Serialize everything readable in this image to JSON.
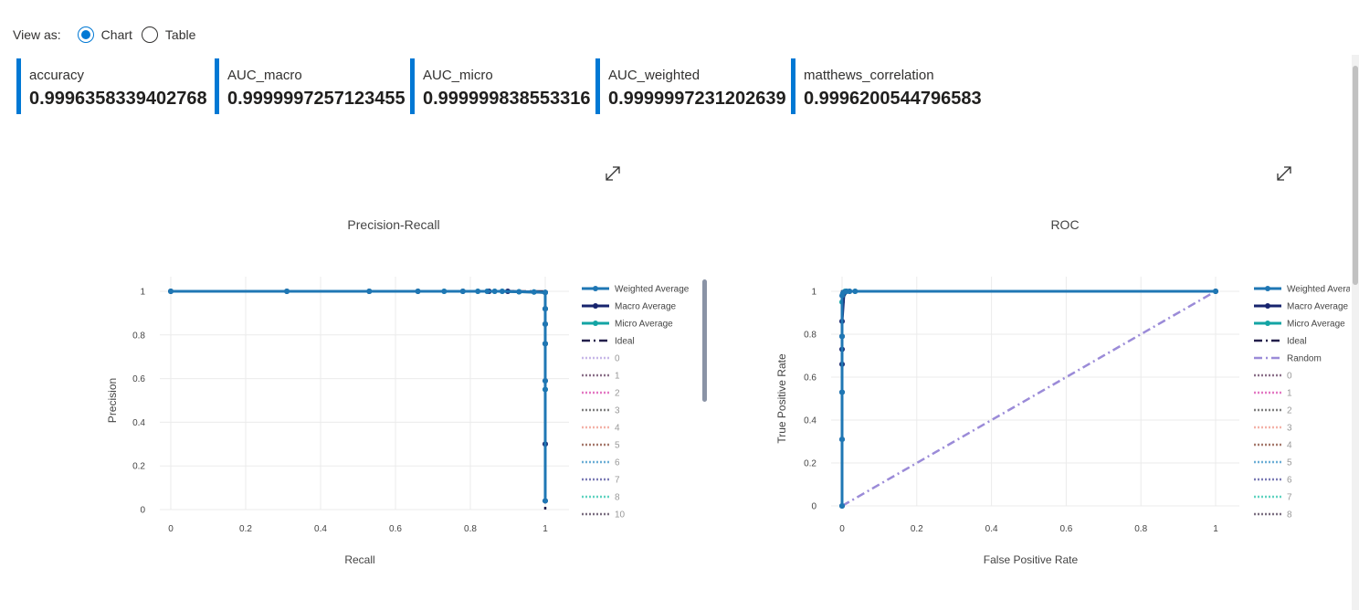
{
  "view_as": {
    "label": "View as:",
    "options": [
      {
        "label": "Chart",
        "selected": true
      },
      {
        "label": "Table",
        "selected": false
      }
    ]
  },
  "metrics": [
    {
      "name": "accuracy",
      "value": "0.9996358339402768"
    },
    {
      "name": "AUC_macro",
      "value": "0.9999997257123455"
    },
    {
      "name": "AUC_micro",
      "value": "0.999999838553316"
    },
    {
      "name": "AUC_weighted",
      "value": "0.9999997231202639"
    },
    {
      "name": "matthews_correlation",
      "value": "0.9996200544796583"
    }
  ],
  "icons": {
    "expand": "expand-diagonal-icon"
  },
  "colors": {
    "accent": "#0078d4"
  },
  "chart_data": [
    {
      "type": "line",
      "title": "Precision-Recall",
      "xlabel": "Recall",
      "ylabel": "Precision",
      "xlim": [
        0,
        1
      ],
      "ylim": [
        0,
        1
      ],
      "x_ticks": [
        "0",
        "0.2",
        "0.4",
        "0.6",
        "0.8",
        "1"
      ],
      "y_ticks": [
        "0",
        "0.2",
        "0.4",
        "0.6",
        "0.8",
        "1"
      ],
      "grid": true,
      "legend_position": "right",
      "series": [
        {
          "name": "Weighted Average",
          "color": "#1f77b4",
          "style": "line-markers",
          "x": [
            0,
            0.31,
            0.53,
            0.66,
            0.73,
            0.78,
            0.82,
            0.845,
            0.865,
            0.885,
            0.93,
            0.97,
            1,
            1,
            1,
            1,
            1,
            1,
            1
          ],
          "y": [
            1,
            1,
            1,
            1,
            1,
            1,
            1,
            1,
            1,
            1,
            0.998,
            0.997,
            0.995,
            0.92,
            0.85,
            0.76,
            0.59,
            0.55,
            0.04
          ]
        },
        {
          "name": "Macro Average",
          "color": "#17246e",
          "style": "line-markers",
          "x": [
            0,
            0.31,
            0.53,
            0.66,
            0.78,
            0.85,
            0.9,
            1,
            1,
            1,
            1,
            1,
            1,
            1
          ],
          "y": [
            1,
            1,
            1,
            1,
            1,
            1,
            1,
            0.995,
            0.92,
            0.85,
            0.76,
            0.59,
            0.3,
            0.04
          ]
        },
        {
          "name": "Micro Average",
          "color": "#13a4a4",
          "style": "line-markers",
          "x": [
            0,
            0.31,
            0.53,
            0.66,
            0.73,
            0.78,
            0.82,
            0.845,
            0.865,
            0.885,
            0.93,
            0.97,
            1,
            1,
            1,
            1,
            1
          ],
          "y": [
            1,
            1,
            1,
            1,
            1,
            1,
            1,
            1,
            1,
            1,
            0.998,
            0.997,
            0.995,
            0.92,
            0.85,
            0.76,
            0.55
          ]
        },
        {
          "name": "Ideal",
          "color": "#221f4b",
          "style": "dashdot",
          "x": [
            0,
            1,
            1
          ],
          "y": [
            1,
            1,
            0
          ]
        },
        {
          "name": "0",
          "color": "#c7b7e8",
          "style": "dot"
        },
        {
          "name": "1",
          "color": "#8a6f88",
          "style": "dot"
        },
        {
          "name": "2",
          "color": "#e377c2",
          "style": "dot"
        },
        {
          "name": "3",
          "color": "#7f7f7f",
          "style": "dot"
        },
        {
          "name": "4",
          "color": "#f4b2a8",
          "style": "dot"
        },
        {
          "name": "5",
          "color": "#a5786b",
          "style": "dot"
        },
        {
          "name": "6",
          "color": "#6baed6",
          "style": "dot"
        },
        {
          "name": "7",
          "color": "#7b7bb5",
          "style": "dot"
        },
        {
          "name": "8",
          "color": "#5fd3c0",
          "style": "dot"
        },
        {
          "name": "10",
          "color": "#7a6e80",
          "style": "dot"
        }
      ]
    },
    {
      "type": "line",
      "title": "ROC",
      "xlabel": "False Positive Rate",
      "ylabel": "True Positive Rate",
      "xlim": [
        0,
        1
      ],
      "ylim": [
        0,
        1
      ],
      "x_ticks": [
        "0",
        "0.2",
        "0.4",
        "0.6",
        "0.8",
        "1"
      ],
      "y_ticks": [
        "0",
        "0.2",
        "0.4",
        "0.6",
        "0.8",
        "1"
      ],
      "grid": true,
      "legend_position": "right",
      "series": [
        {
          "name": "Weighted Average",
          "color": "#1f77b4",
          "style": "line-markers",
          "x": [
            0,
            0,
            0,
            0,
            0,
            0.002,
            0.004,
            0.008,
            0.012,
            0.02,
            0.035,
            1
          ],
          "y": [
            0,
            0.31,
            0.53,
            0.79,
            0.98,
            0.99,
            0.995,
            0.998,
            1,
            1,
            1,
            1
          ]
        },
        {
          "name": "Macro Average",
          "color": "#17246e",
          "style": "line-markers",
          "x": [
            0,
            0,
            0,
            0,
            0,
            0,
            0,
            0.005,
            0.02,
            1
          ],
          "y": [
            0,
            0.31,
            0.53,
            0.66,
            0.73,
            0.79,
            0.86,
            0.99,
            1,
            1
          ]
        },
        {
          "name": "Micro Average",
          "color": "#13a4a4",
          "style": "line-markers",
          "x": [
            0,
            0,
            0,
            0,
            0.002,
            0.004,
            0.008,
            0.012,
            0.035,
            1
          ],
          "y": [
            0,
            0.53,
            0.79,
            0.95,
            0.98,
            0.99,
            1,
            1,
            1,
            1
          ]
        },
        {
          "name": "Ideal",
          "color": "#221f4b",
          "style": "dashdot",
          "x": [
            0,
            0,
            1
          ],
          "y": [
            0,
            1,
            1
          ]
        },
        {
          "name": "Random",
          "color": "#9b8bd8",
          "style": "dashdot",
          "x": [
            0,
            1
          ],
          "y": [
            0,
            1
          ]
        },
        {
          "name": "0",
          "color": "#8a6f88",
          "style": "dot"
        },
        {
          "name": "1",
          "color": "#e377c2",
          "style": "dot"
        },
        {
          "name": "2",
          "color": "#7f7f7f",
          "style": "dot"
        },
        {
          "name": "3",
          "color": "#f4b2a8",
          "style": "dot"
        },
        {
          "name": "4",
          "color": "#a5786b",
          "style": "dot"
        },
        {
          "name": "5",
          "color": "#6baed6",
          "style": "dot"
        },
        {
          "name": "6",
          "color": "#7b7bb5",
          "style": "dot"
        },
        {
          "name": "7",
          "color": "#5fd3c0",
          "style": "dot"
        },
        {
          "name": "8",
          "color": "#7a6e80",
          "style": "dot"
        }
      ]
    }
  ]
}
